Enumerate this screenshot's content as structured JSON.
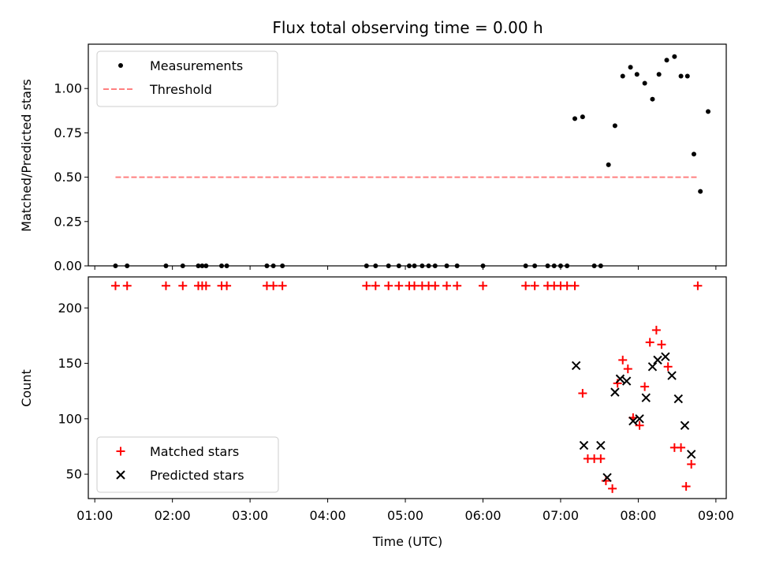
{
  "chart_data": [
    {
      "type": "scatter",
      "title": "Flux total observing time = 0.00 h",
      "xlabel": "",
      "ylabel": "Matched/Predicted stars",
      "ylim": [
        0,
        1.25
      ],
      "yticks": [
        0.0,
        0.25,
        0.5,
        0.75,
        1.0
      ],
      "yticklabels": [
        "0.00",
        "0.25",
        "0.50",
        "0.75",
        "1.00"
      ],
      "xlim": [
        "00:55",
        "09:08"
      ],
      "legend": "upper-left",
      "colors": {
        "measurements": "#000000",
        "threshold": "#ff8080"
      },
      "series": [
        {
          "name": "Measurements",
          "style": "dot",
          "x": [
            "01:16",
            "01:25",
            "01:55",
            "02:08",
            "02:20",
            "02:23",
            "02:26",
            "02:38",
            "02:42",
            "03:13",
            "03:18",
            "03:25",
            "04:30",
            "04:37",
            "04:47",
            "04:55",
            "05:03",
            "05:07",
            "05:13",
            "05:18",
            "05:23",
            "05:32",
            "05:40",
            "06:00",
            "06:33",
            "06:40",
            "06:50",
            "06:55",
            "07:00",
            "07:05",
            "07:11",
            "07:17",
            "07:26",
            "07:31",
            "07:37",
            "07:42",
            "07:48",
            "07:54",
            "07:59",
            "08:05",
            "08:11",
            "08:16",
            "08:22",
            "08:28",
            "08:33",
            "08:38",
            "08:43",
            "08:48",
            "08:54"
          ],
          "y": [
            0,
            0,
            0,
            0,
            0,
            0,
            0,
            0,
            0,
            0,
            0,
            0,
            0,
            0,
            0,
            0,
            0,
            0,
            0,
            0,
            0,
            0,
            0,
            0,
            0,
            0,
            0,
            0,
            0,
            0,
            0.83,
            0.84,
            0,
            0,
            0.57,
            0.79,
            1.07,
            1.12,
            1.08,
            1.03,
            0.94,
            1.08,
            1.16,
            1.18,
            1.07,
            1.07,
            0.63,
            0.42,
            0.87
          ]
        },
        {
          "name": "Threshold",
          "style": "dashed",
          "x": [
            "01:16",
            "08:47"
          ],
          "y": [
            0.5,
            0.5
          ]
        }
      ]
    },
    {
      "type": "scatter",
      "title": "",
      "xlabel": "Time (UTC)",
      "ylabel": "Count",
      "ylim": [
        28,
        228
      ],
      "yticks": [
        50,
        100,
        150,
        200
      ],
      "yticklabels": [
        "50",
        "100",
        "150",
        "200"
      ],
      "xlim": [
        "00:55",
        "09:08"
      ],
      "xticklabels": [
        "01:00",
        "02:00",
        "03:00",
        "04:00",
        "05:00",
        "06:00",
        "07:00",
        "08:00",
        "09:00"
      ],
      "legend": "lower-left",
      "colors": {
        "matched": "#ff0000",
        "predicted": "#000000"
      },
      "series": [
        {
          "name": "Matched stars",
          "style": "plus",
          "x": [
            "01:16",
            "01:25",
            "01:55",
            "02:08",
            "02:20",
            "02:23",
            "02:26",
            "02:38",
            "02:42",
            "03:13",
            "03:18",
            "03:25",
            "04:30",
            "04:37",
            "04:47",
            "04:55",
            "05:03",
            "05:07",
            "05:13",
            "05:18",
            "05:23",
            "05:32",
            "05:40",
            "06:00",
            "06:33",
            "06:40",
            "06:50",
            "06:55",
            "07:00",
            "07:05",
            "07:11",
            "07:17",
            "07:21",
            "07:26",
            "07:31",
            "07:35",
            "07:40",
            "07:44",
            "07:48",
            "07:52",
            "07:56",
            "08:01",
            "08:05",
            "08:09",
            "08:14",
            "08:18",
            "08:23",
            "08:28",
            "08:33",
            "08:37",
            "08:41",
            "08:46"
          ],
          "y": [
            220,
            220,
            220,
            220,
            220,
            220,
            220,
            220,
            220,
            220,
            220,
            220,
            220,
            220,
            220,
            220,
            220,
            220,
            220,
            220,
            220,
            220,
            220,
            220,
            220,
            220,
            220,
            220,
            220,
            220,
            220,
            123,
            64,
            64,
            64,
            44,
            37,
            132,
            153,
            145,
            101,
            94,
            129,
            169,
            180,
            167,
            147,
            74,
            74,
            39,
            59,
            220
          ],
          "x_fix": null
        },
        {
          "name": "Predicted stars",
          "style": "cross",
          "x": [
            "07:12",
            "07:18",
            "07:31",
            "07:36",
            "07:42",
            "07:46",
            "07:51",
            "07:56",
            "08:01",
            "08:06",
            "08:11",
            "08:15",
            "08:21",
            "08:26",
            "08:31",
            "08:36",
            "08:41"
          ],
          "y": [
            148,
            76,
            76,
            47,
            124,
            136,
            134,
            98,
            100,
            119,
            147,
            153,
            156,
            139,
            118,
            94,
            68
          ]
        }
      ]
    }
  ]
}
